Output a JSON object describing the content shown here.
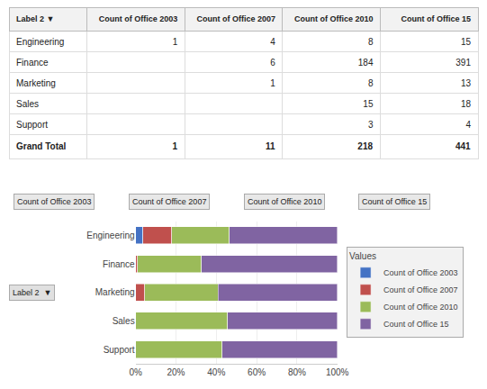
{
  "chart_data": [
    {
      "type": "table",
      "ylabel": "Label 2 ▼",
      "categories": [
        "Engineering",
        "Finance",
        "Marketing",
        "Sales",
        "Support",
        "Grand Total"
      ],
      "series": [
        {
          "name": "Count of Office 2003",
          "values": [
            1,
            null,
            null,
            null,
            null,
            1
          ]
        },
        {
          "name": "Count of Office 2007",
          "values": [
            4,
            6,
            1,
            null,
            null,
            11
          ]
        },
        {
          "name": "Count of Office 2010",
          "values": [
            8,
            184,
            8,
            15,
            3,
            218
          ]
        },
        {
          "name": "Count of Office 15",
          "values": [
            15,
            391,
            13,
            18,
            4,
            441
          ]
        }
      ],
      "annotations": [
        "Count of Office 2003",
        "Count of Office 2007",
        "Count of Office 2010",
        "Count of Office 15"
      ]
    },
    {
      "type": "bar",
      "orientation": "horizontal",
      "stacked": true,
      "categories": [
        "Support",
        "Sales",
        "Marketing",
        "Finance",
        "Engineering"
      ],
      "series": [
        {
          "name": "Count of Office 2003",
          "color": "#4472C4",
          "values": [
            0,
            0,
            0,
            0,
            3.571428571428571
          ]
        },
        {
          "name": "Count of Office 2007",
          "color": "#C0504D",
          "values": [
            0,
            0,
            4.545454545454546,
            1.0327022375215147,
            14.285714285714285
          ]
        },
        {
          "name": "Count of Office 2010",
          "color": "#9BBB59",
          "values": [
            42.857142857142854,
            45.45454545454545,
            36.36363636363637,
            31.669535283993117,
            28.571428571428573
          ]
        },
        {
          "name": "Count of Office 15",
          "color": "#8064A2",
          "values": [
            57.142857142857146,
            54.54545454545455,
            59.09090909090909,
            67.29776247848537,
            53.57142857142857
          ]
        }
      ],
      "xlim": [
        0,
        100
      ],
      "xticks": [
        {
          "value": 0,
          "label": "0%"
        },
        {
          "value": 20,
          "label": "20%"
        },
        {
          "value": 40,
          "label": "40%"
        },
        {
          "value": 60,
          "label": "60%"
        },
        {
          "value": 80,
          "label": "80%"
        },
        {
          "value": 100,
          "label": "100%"
        }
      ],
      "grid": true,
      "legend": "right",
      "legend_title": "Values",
      "annotations": [
        "Label 2  ▼"
      ]
    }
  ]
}
